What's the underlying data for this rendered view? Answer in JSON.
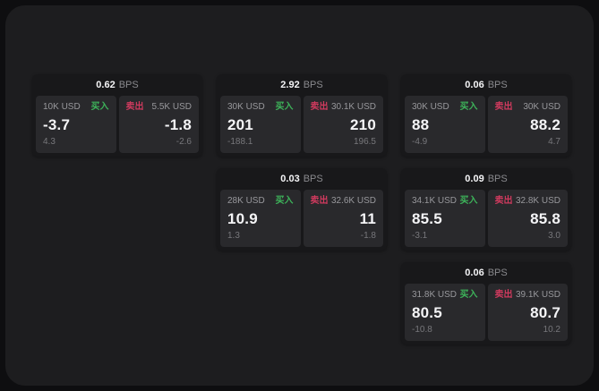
{
  "labels": {
    "bps_unit": "BPS",
    "buy": "买入",
    "sell": "卖出"
  },
  "colors": {
    "buy_green": "#3db35a",
    "sell_red": "#cf3a5e",
    "panel_bg": "#1d1d1f",
    "card_bg": "#18181a",
    "subpanel_bg": "#29292c",
    "outer_bg": "#0e0e10"
  },
  "columns": [
    {
      "cards": [
        {
          "bps": "0.62",
          "buy": {
            "amount": "10K USD",
            "value": "-3.7",
            "delta": "4.3"
          },
          "sell": {
            "amount": "5.5K USD",
            "value": "-1.8",
            "delta": "-2.6"
          }
        }
      ]
    },
    {
      "cards": [
        {
          "bps": "2.92",
          "buy": {
            "amount": "30K USD",
            "value": "201",
            "delta": "-188.1"
          },
          "sell": {
            "amount": "30.1K USD",
            "value": "210",
            "delta": "196.5"
          }
        },
        {
          "bps": "0.03",
          "buy": {
            "amount": "28K USD",
            "value": "10.9",
            "delta": "1.3"
          },
          "sell": {
            "amount": "32.6K USD",
            "value": "11",
            "delta": "-1.8"
          }
        }
      ]
    },
    {
      "cards": [
        {
          "bps": "0.06",
          "buy": {
            "amount": "30K USD",
            "value": "88",
            "delta": "-4.9"
          },
          "sell": {
            "amount": "30K USD",
            "value": "88.2",
            "delta": "4.7"
          }
        },
        {
          "bps": "0.09",
          "buy": {
            "amount": "34.1K USD",
            "value": "85.5",
            "delta": "-3.1"
          },
          "sell": {
            "amount": "32.8K USD",
            "value": "85.8",
            "delta": "3.0"
          }
        },
        {
          "bps": "0.06",
          "buy": {
            "amount": "31.8K USD",
            "value": "80.5",
            "delta": "-10.8"
          },
          "sell": {
            "amount": "39.1K USD",
            "value": "80.7",
            "delta": "10.2"
          }
        }
      ]
    }
  ]
}
